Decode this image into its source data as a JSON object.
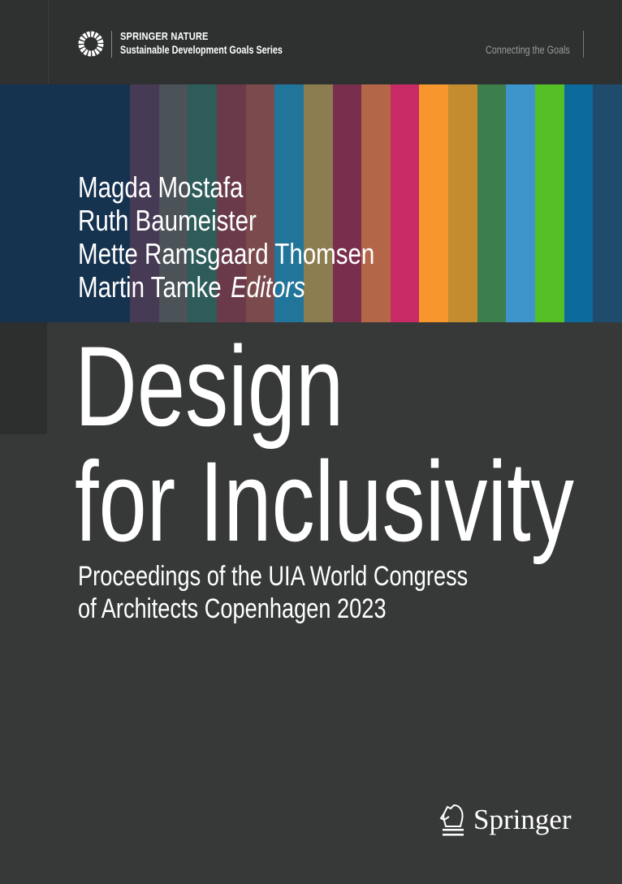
{
  "header": {
    "publisher": "SPRINGER NATURE",
    "series": "Sustainable Development Goals Series",
    "tagline": "Connecting the Goals"
  },
  "stripes": [
    "#15324f",
    "#473a55",
    "#4b5258",
    "#2d5c5a",
    "#6a3a4a",
    "#7a4a4c",
    "#22759a",
    "#8c7d50",
    "#7a2e4d",
    "#b46648",
    "#c82a65",
    "#f7962d",
    "#c48b2f",
    "#3c7f4d",
    "#3d95cc",
    "#55c025",
    "#0d6a9c",
    "#1f4b6c"
  ],
  "authors": [
    "Magda Mostafa",
    "Ruth Baumeister",
    "Mette Ramsgaard Thomsen",
    "Martin Tamke"
  ],
  "editors_label": "Editors",
  "title": [
    "Design",
    "for Inclusivity"
  ],
  "subtitle": [
    "Proceedings of the UIA World Congress",
    "of Architects Copenhagen 2023"
  ],
  "publisher_logo": {
    "text": "Springer",
    "icon": "chess-knight-icon"
  }
}
